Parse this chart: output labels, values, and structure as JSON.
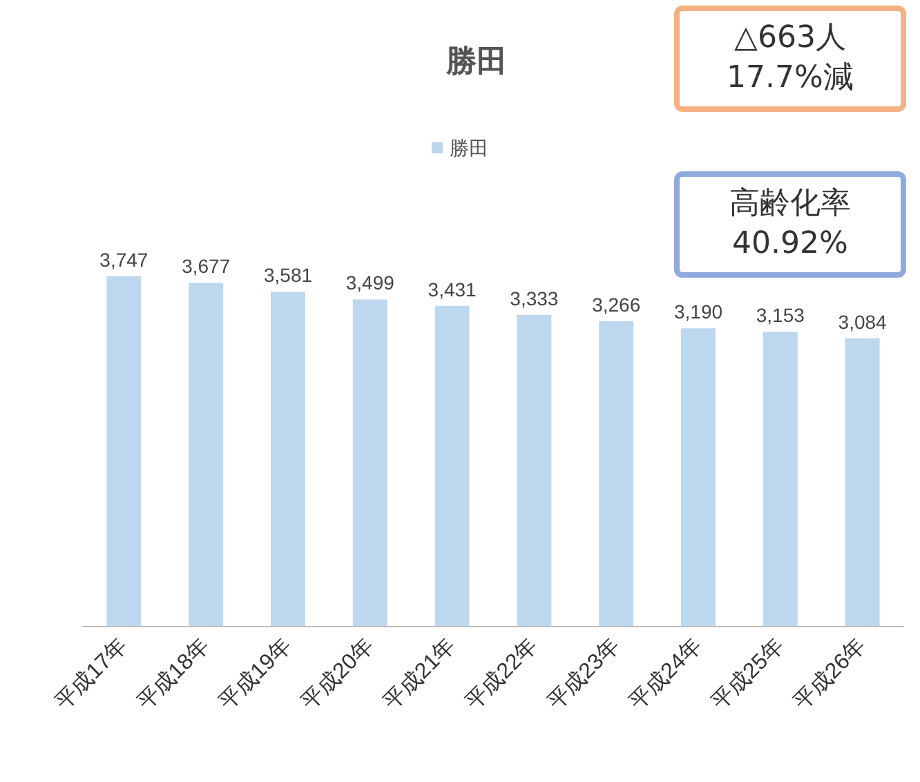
{
  "chart_data": {
    "type": "bar",
    "title": "勝田",
    "categories": [
      "平成17年",
      "平成18年",
      "平成19年",
      "平成20年",
      "平成21年",
      "平成22年",
      "平成23年",
      "平成24年",
      "平成25年",
      "平成26年"
    ],
    "series": [
      {
        "name": "勝田",
        "color": "#bdd7ee",
        "values": [
          3747,
          3677,
          3581,
          3499,
          3431,
          3333,
          3266,
          3190,
          3153,
          3084
        ],
        "value_labels": [
          "3,747",
          "3,677",
          "3,581",
          "3,499",
          "3,431",
          "3,333",
          "3,266",
          "3,190",
          "3,153",
          "3,084"
        ]
      }
    ],
    "grid": false,
    "legend": "top",
    "tick_labels": "x",
    "annotations": [
      "△663人\n17.7%減",
      "高齢化率\n40.92%"
    ]
  }
}
